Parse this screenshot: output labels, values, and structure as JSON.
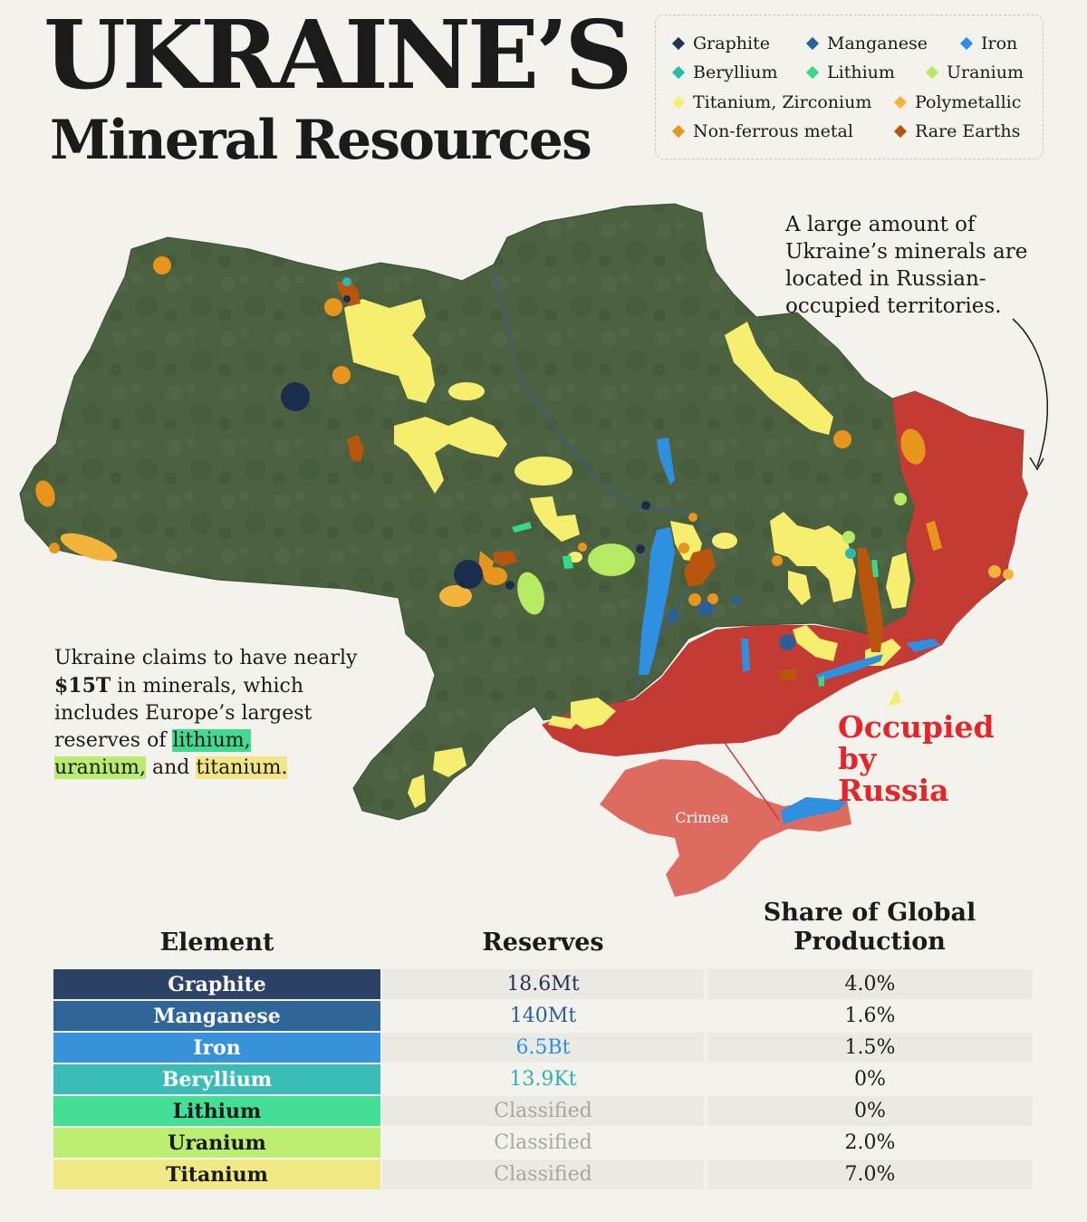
{
  "title": {
    "line1": "UKRAINE’S",
    "line2": "Mineral Resources"
  },
  "legend": [
    {
      "label": "Graphite",
      "color": "#1f3457"
    },
    {
      "label": "Manganese",
      "color": "#2b5f97"
    },
    {
      "label": "Iron",
      "color": "#2f8fe0"
    },
    {
      "label": "Beryllium",
      "color": "#2fb8b0"
    },
    {
      "label": "Lithium",
      "color": "#35d98b"
    },
    {
      "label": "Uranium",
      "color": "#b6ea63"
    },
    {
      "label": "Titanium, Zirconium",
      "color": "#f6ee6e"
    },
    {
      "label": "Polymetallic",
      "color": "#f2b43a"
    },
    {
      "label": "Non-ferrous metal",
      "color": "#e8951d"
    },
    {
      "label": "Rare Earths",
      "color": "#b9560d"
    }
  ],
  "map": {
    "crimea_label": "Crimea",
    "occupied_label": "Occupied by Russia",
    "colors": {
      "land": "#4b6140",
      "occupied": "#c43b33",
      "crimea": "#dd6b60"
    }
  },
  "annotations": {
    "callout": "A large amount of Ukraine’s minerals are located in Russian-occupied territories.",
    "claim_prefix": "Ukraine claims to have nearly ",
    "claim_amount": "$15T",
    "claim_middle": " in minerals, which includes Europe’s largest reserves of ",
    "claim_lithium": "lithium,",
    "claim_uranium": "uranium,",
    "claim_and": " and ",
    "claim_titanium": "titanium."
  },
  "table": {
    "headers": {
      "element": "Element",
      "reserves": "Reserves",
      "share": "Share of Global Production"
    },
    "rows": [
      {
        "element": "Graphite",
        "reserves": "18.6Mt",
        "share": "4.0%",
        "bg": "#2c4266",
        "fg": "#ffffff",
        "reserves_color": "#1f3457"
      },
      {
        "element": "Manganese",
        "reserves": "140Mt",
        "share": "1.6%",
        "bg": "#2f6599",
        "fg": "#ffffff",
        "reserves_color": "#2b5f97"
      },
      {
        "element": "Iron",
        "reserves": "6.5Bt",
        "share": "1.5%",
        "bg": "#3792d9",
        "fg": "#ffffff",
        "reserves_color": "#2f8fe0"
      },
      {
        "element": "Beryllium",
        "reserves": "13.9Kt",
        "share": "0%",
        "bg": "#3cbcb6",
        "fg": "#ffffff",
        "reserves_color": "#2fb2aa"
      },
      {
        "element": "Lithium",
        "reserves": "Classified",
        "share": "0%",
        "bg": "#43df96",
        "fg": "#1b1b1b",
        "reserves_color": "#a8a6a1"
      },
      {
        "element": "Uranium",
        "reserves": "Classified",
        "share": "2.0%",
        "bg": "#bcee72",
        "fg": "#1b1b1b",
        "reserves_color": "#a8a6a1"
      },
      {
        "element": "Titanium",
        "reserves": "Classified",
        "share": "7.0%",
        "bg": "#f2e884",
        "fg": "#1b1b1b",
        "reserves_color": "#a8a6a1"
      }
    ]
  }
}
